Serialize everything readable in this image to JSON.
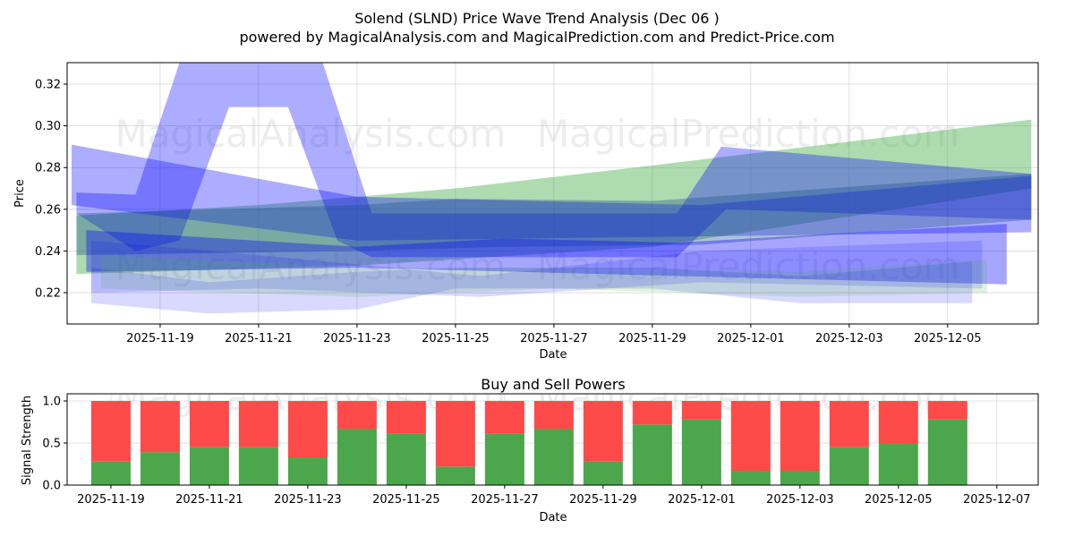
{
  "chart_data": [
    {
      "type": "area",
      "title": "Solend (SLND) Price Wave Trend Analysis (Dec 06 )",
      "subtitle": "powered by MagicalAnalysis.com and MagicalPrediction.com and Predict-Price.com",
      "xlabel": "Date",
      "ylabel": "Price",
      "x_unit": "days since 2025-11-17",
      "xlim": [
        0.11,
        19.84
      ],
      "ylim": [
        0.205,
        0.3303
      ],
      "grid": true,
      "xticks": [
        {
          "v": 2,
          "label": "2025-11-19"
        },
        {
          "v": 4,
          "label": "2025-11-21"
        },
        {
          "v": 6,
          "label": "2025-11-23"
        },
        {
          "v": 8,
          "label": "2025-11-25"
        },
        {
          "v": 10,
          "label": "2025-11-27"
        },
        {
          "v": 12,
          "label": "2025-11-29"
        },
        {
          "v": 14,
          "label": "2025-12-01"
        },
        {
          "v": 16,
          "label": "2025-12-03"
        },
        {
          "v": 18,
          "label": "2025-12-05"
        }
      ],
      "yticks": [
        {
          "v": 0.22,
          "label": "0.22"
        },
        {
          "v": 0.24,
          "label": "0.24"
        },
        {
          "v": 0.26,
          "label": "0.26"
        },
        {
          "v": 0.28,
          "label": "0.28"
        },
        {
          "v": 0.3,
          "label": "0.30"
        },
        {
          "v": 0.32,
          "label": "0.32"
        }
      ],
      "watermarks": [
        "MagicalAnalysis.com",
        "MagicalPrediction.com"
      ],
      "bands": [
        {
          "name": "green-wave",
          "color": "#4caf50",
          "opacity": 0.45,
          "upper": [
            [
              0.3,
              0.257
            ],
            [
              4,
              0.262
            ],
            [
              8,
              0.27
            ],
            [
              12,
              0.281
            ],
            [
              19.7,
              0.303
            ]
          ],
          "lower": [
            [
              0.3,
              0.229
            ],
            [
              6,
              0.233
            ],
            [
              12,
              0.242
            ],
            [
              19.7,
              0.27
            ]
          ]
        },
        {
          "name": "blue-arch-wave",
          "color": "#0000ff",
          "opacity": 0.32,
          "upper": [
            [
              0.3,
              0.268
            ],
            [
              1.5,
              0.267
            ],
            [
              2.6,
              0.345
            ],
            [
              5.1,
              0.345
            ],
            [
              6.3,
              0.258
            ],
            [
              12.5,
              0.258
            ],
            [
              13.4,
              0.29
            ],
            [
              19.7,
              0.277
            ]
          ],
          "lower": [
            [
              0.3,
              0.258
            ],
            [
              1.5,
              0.24
            ],
            [
              2.4,
              0.245
            ],
            [
              3.4,
              0.309
            ],
            [
              4.6,
              0.309
            ],
            [
              5.6,
              0.245
            ],
            [
              6.3,
              0.237
            ],
            [
              12.5,
              0.237
            ],
            [
              13.5,
              0.26
            ],
            [
              19.7,
              0.255
            ]
          ]
        },
        {
          "name": "blue-diagonal-wave",
          "color": "#0000ff",
          "opacity": 0.32,
          "upper": [
            [
              0.2,
              0.291
            ],
            [
              6,
              0.266
            ],
            [
              13,
              0.262
            ],
            [
              19.7,
              0.276
            ]
          ],
          "lower": [
            [
              0.2,
              0.262
            ],
            [
              6,
              0.245
            ],
            [
              13,
              0.247
            ],
            [
              19.7,
              0.249
            ]
          ]
        },
        {
          "name": "teal-wave",
          "color": "#1a4f8a",
          "opacity": 0.35,
          "upper": [
            [
              0.3,
              0.258
            ],
            [
              6,
              0.262
            ],
            [
              8,
              0.265
            ],
            [
              12,
              0.264
            ],
            [
              19.7,
              0.277
            ]
          ],
          "lower": [
            [
              0.3,
              0.238
            ],
            [
              6,
              0.24
            ],
            [
              9,
              0.242
            ],
            [
              13,
              0.243
            ],
            [
              19.7,
              0.255
            ]
          ]
        },
        {
          "name": "blue-lower-wave",
          "color": "#0000ff",
          "opacity": 0.35,
          "upper": [
            [
              0.5,
              0.25
            ],
            [
              6,
              0.242
            ],
            [
              9,
              0.246
            ],
            [
              12.5,
              0.244
            ],
            [
              19.2,
              0.253
            ]
          ],
          "lower": [
            [
              0.5,
              0.23
            ],
            [
              6,
              0.232
            ],
            [
              12.5,
              0.228
            ],
            [
              19.2,
              0.224
            ]
          ]
        },
        {
          "name": "faint-wave-1",
          "color": "#0000ff",
          "opacity": 0.15,
          "upper": [
            [
              0.6,
              0.232
            ],
            [
              3,
              0.225
            ],
            [
              6,
              0.23
            ],
            [
              8,
              0.232
            ],
            [
              12,
              0.232
            ],
            [
              15,
              0.228
            ],
            [
              18.5,
              0.235
            ]
          ],
          "lower": [
            [
              0.6,
              0.215
            ],
            [
              3,
              0.21
            ],
            [
              6,
              0.212
            ],
            [
              8,
              0.222
            ],
            [
              12,
              0.222
            ],
            [
              15,
              0.215
            ],
            [
              18.5,
              0.215
            ]
          ]
        },
        {
          "name": "faint-wave-2",
          "color": "#0000ff",
          "opacity": 0.15,
          "upper": [
            [
              0.6,
              0.245
            ],
            [
              4,
              0.238
            ],
            [
              8.5,
              0.228
            ],
            [
              13,
              0.24
            ],
            [
              18.7,
              0.245
            ]
          ],
          "lower": [
            [
              0.6,
              0.22
            ],
            [
              4,
              0.222
            ],
            [
              8.5,
              0.218
            ],
            [
              13,
              0.225
            ],
            [
              18.7,
              0.222
            ]
          ]
        },
        {
          "name": "faint-green-wave",
          "color": "#4caf50",
          "opacity": 0.18,
          "upper": [
            [
              0.8,
              0.238
            ],
            [
              6,
              0.232
            ],
            [
              10,
              0.232
            ],
            [
              15,
              0.23
            ],
            [
              18.8,
              0.236
            ]
          ],
          "lower": [
            [
              0.8,
              0.222
            ],
            [
              6,
              0.218
            ],
            [
              10,
              0.222
            ],
            [
              15,
              0.218
            ],
            [
              18.8,
              0.22
            ]
          ]
        }
      ]
    },
    {
      "type": "bar",
      "title": "Buy and Sell Powers",
      "xlabel": "Date",
      "ylabel": "Signal Strength",
      "x_unit": "days since 2025-11-17",
      "xlim": [
        1.11,
        20.84
      ],
      "ylim": [
        0,
        1.085
      ],
      "grid": true,
      "xticks": [
        {
          "v": 2,
          "label": "2025-11-19"
        },
        {
          "v": 4,
          "label": "2025-11-21"
        },
        {
          "v": 6,
          "label": "2025-11-23"
        },
        {
          "v": 8,
          "label": "2025-11-25"
        },
        {
          "v": 10,
          "label": "2025-11-27"
        },
        {
          "v": 12,
          "label": "2025-11-29"
        },
        {
          "v": 14,
          "label": "2025-12-01"
        },
        {
          "v": 16,
          "label": "2025-12-03"
        },
        {
          "v": 18,
          "label": "2025-12-05"
        },
        {
          "v": 20,
          "label": "2025-12-07"
        }
      ],
      "yticks": [
        {
          "v": 0,
          "label": "0.0"
        },
        {
          "v": 0.5,
          "label": "0.5"
        },
        {
          "v": 1.0,
          "label": "1.0"
        }
      ],
      "categories": [
        "2025-11-19",
        "2025-11-20",
        "2025-11-21",
        "2025-11-22",
        "2025-11-23",
        "2025-11-24",
        "2025-11-25",
        "2025-11-26",
        "2025-11-27",
        "2025-11-28",
        "2025-11-29",
        "2025-11-30",
        "2025-12-01",
        "2025-12-02",
        "2025-12-03",
        "2025-12-04",
        "2025-12-05",
        "2025-12-06"
      ],
      "series": [
        {
          "name": "Buy",
          "color": "#4ca64c",
          "values": [
            0.28,
            0.39,
            0.45,
            0.45,
            0.33,
            0.67,
            0.61,
            0.22,
            0.61,
            0.67,
            0.28,
            0.72,
            0.78,
            0.17,
            0.17,
            0.45,
            0.5,
            0.78
          ]
        },
        {
          "name": "Sell",
          "color": "#ff4a4a",
          "values": [
            0.72,
            0.61,
            0.55,
            0.55,
            0.67,
            0.33,
            0.39,
            0.78,
            0.39,
            0.33,
            0.72,
            0.28,
            0.22,
            0.83,
            0.83,
            0.55,
            0.5,
            0.22
          ]
        }
      ],
      "watermarks": [
        "MagicalAnalysis.com",
        "MagicalPrediction.com"
      ]
    }
  ]
}
